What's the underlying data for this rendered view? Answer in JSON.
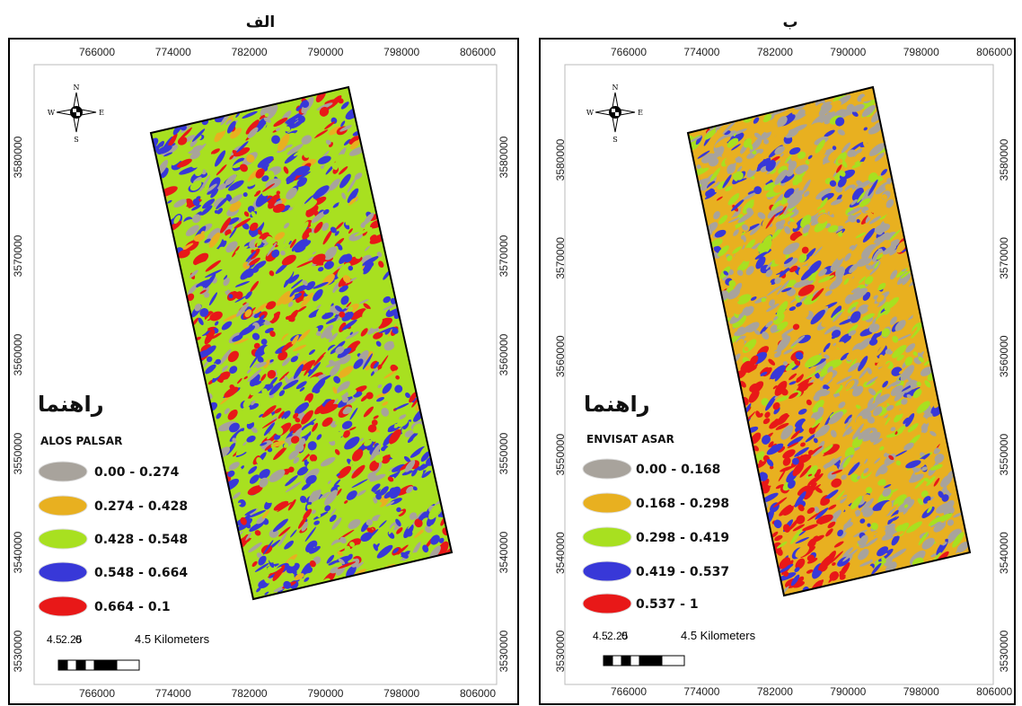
{
  "panels": [
    {
      "label": "الف",
      "legend_title": "راهنما",
      "sensor": "ALOS PALSAR",
      "classes": [
        {
          "label": "0.00 - 0.274",
          "color": "#a8a39c"
        },
        {
          "label": "0.274 - 0.428",
          "color": "#e8b020"
        },
        {
          "label": "0.428 - 0.548",
          "color": "#a8e020"
        },
        {
          "label": "0.548 - 0.664",
          "color": "#3838d8"
        },
        {
          "label": "0.664 - 0.1",
          "color": "#e81818"
        }
      ],
      "x_ticks": [
        766000,
        774000,
        782000,
        790000,
        798000,
        806000
      ],
      "y_ticks": [
        3580000,
        3570000,
        3560000,
        3550000,
        3540000,
        3530000
      ],
      "compass": {
        "n": "N",
        "s": "S",
        "w": "W",
        "e": "E"
      },
      "scale": {
        "labels": [
          "4.5",
          "2.25",
          "0"
        ],
        "unit": "4.5 Kilometers"
      }
    },
    {
      "label": "ب",
      "legend_title": "راهنما",
      "sensor": "ENVISAT ASAR",
      "classes": [
        {
          "label": "0.00 - 0.168",
          "color": "#a8a39c"
        },
        {
          "label": "0.168 - 0.298",
          "color": "#e8b020"
        },
        {
          "label": "0.298 - 0.419",
          "color": "#a8e020"
        },
        {
          "label": "0.419 - 0.537",
          "color": "#3838d8"
        },
        {
          "label": "0.537 - 1",
          "color": "#e81818"
        }
      ],
      "x_ticks": [
        766000,
        774000,
        782000,
        790000,
        798000,
        806000
      ],
      "y_ticks": [
        3580000,
        3570000,
        3560000,
        3550000,
        3540000,
        3530000
      ],
      "compass": {
        "n": "N",
        "s": "S",
        "w": "W",
        "e": "E"
      },
      "scale": {
        "labels": [
          "4.5",
          "2.25",
          "0"
        ],
        "unit": "4.5 Kilometers"
      }
    }
  ]
}
